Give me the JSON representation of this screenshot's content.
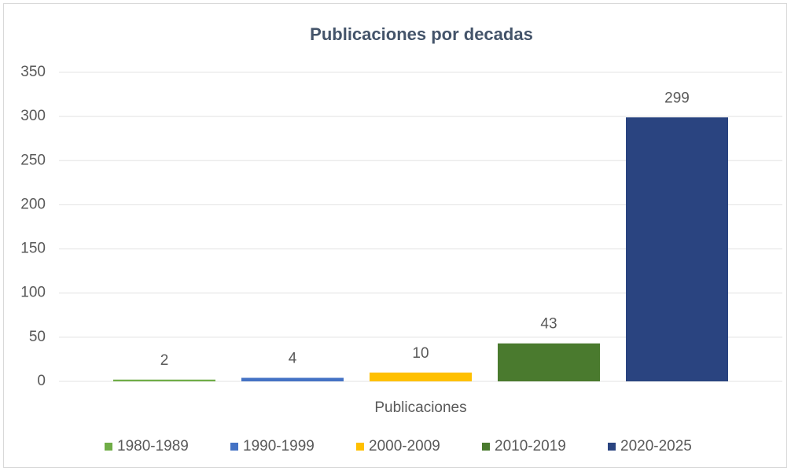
{
  "chart_data": {
    "type": "bar",
    "title": "Publicaciones por decadas",
    "categories": [
      "Publicaciones"
    ],
    "series": [
      {
        "name": "1980-1989",
        "color": "#70ad47",
        "values": [
          2
        ]
      },
      {
        "name": "1990-1999",
        "color": "#4472c4",
        "values": [
          4
        ]
      },
      {
        "name": "2000-2009",
        "color": "#ffc000",
        "values": [
          10
        ]
      },
      {
        "name": "2010-2019",
        "color": "#4a7a2e",
        "values": [
          43
        ]
      },
      {
        "name": "2020-2025",
        "color": "#2a4480",
        "values": [
          299
        ]
      }
    ],
    "ylim": [
      0,
      350
    ],
    "yticks": [
      0,
      50,
      100,
      150,
      200,
      250,
      300,
      350
    ],
    "grid": true,
    "legend": "bottom",
    "data_labels": true
  }
}
